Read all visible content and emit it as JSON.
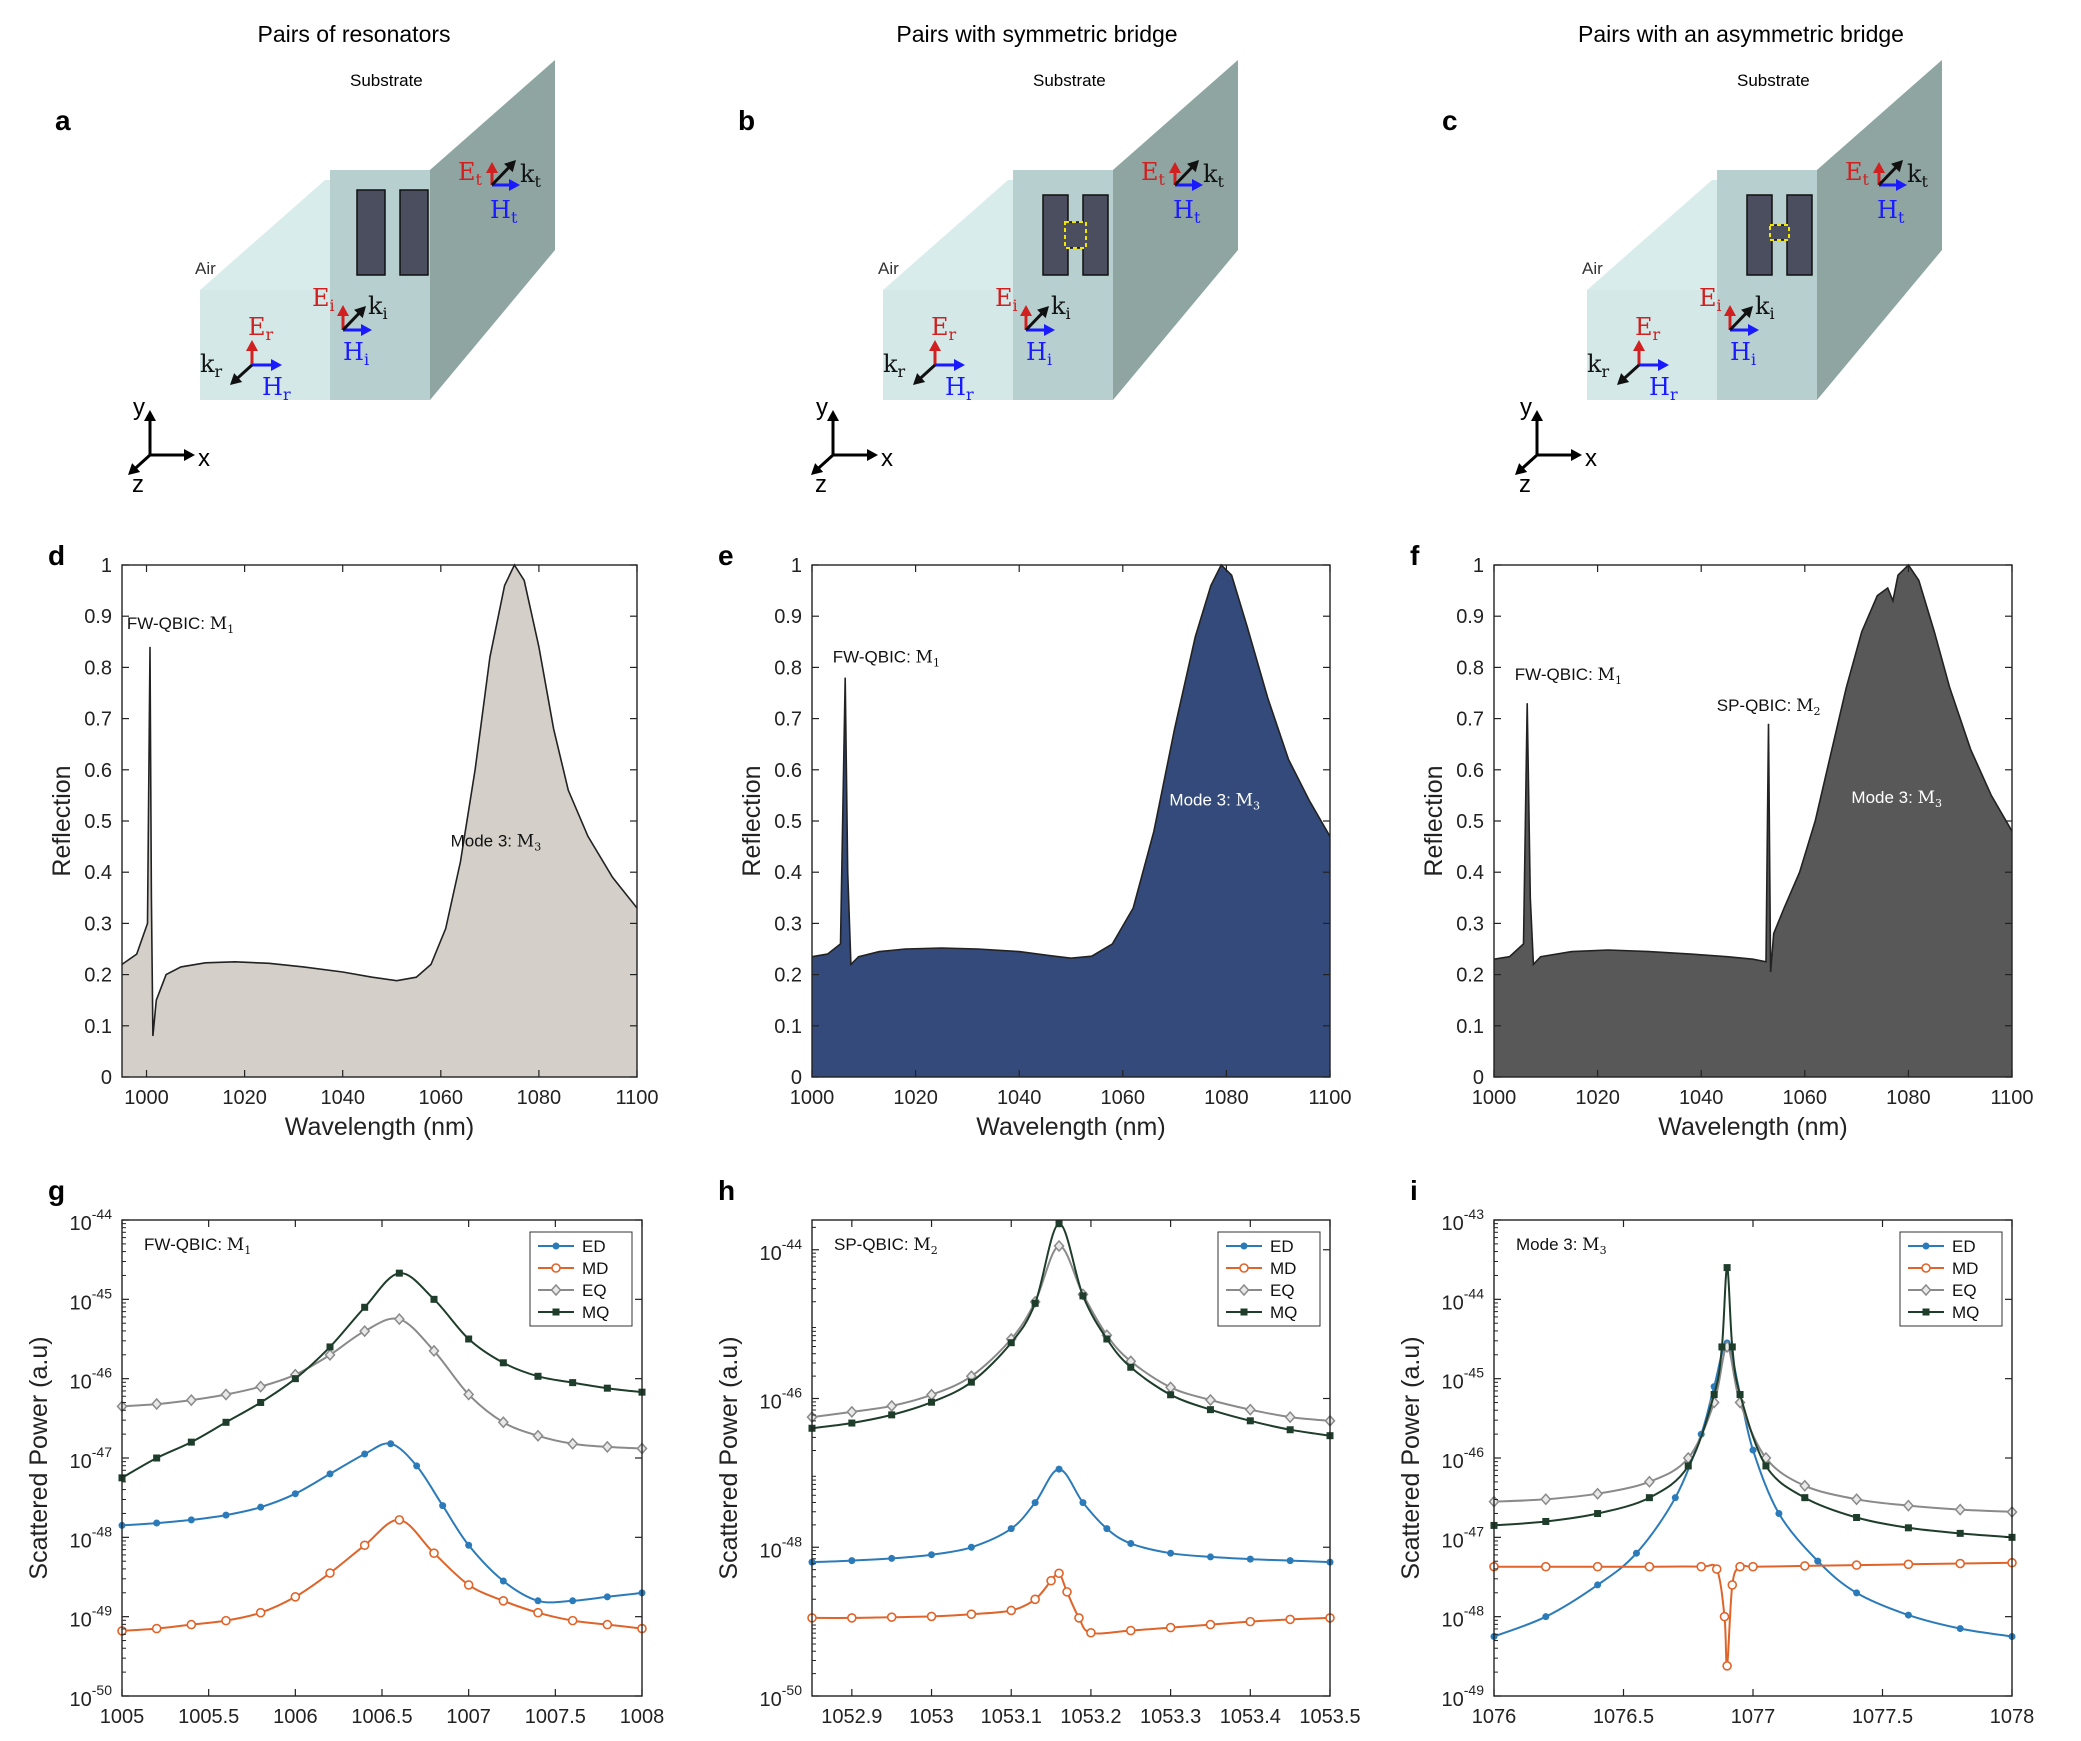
{
  "figure": {
    "panel_labels": [
      "a",
      "b",
      "c",
      "d",
      "e",
      "f",
      "g",
      "h",
      "i"
    ],
    "schematics": [
      {
        "title": "Pairs of resonators",
        "bridge": "none"
      },
      {
        "title": "Pairs with symmetric bridge",
        "bridge": "symmetric"
      },
      {
        "title": "Pairs with an asymmetric bridge",
        "bridge": "asymmetric"
      }
    ],
    "schematic_labels": {
      "substrate": "Substrate",
      "air": "Air",
      "E_t": "E",
      "E_t_sub": "t",
      "k_t": "k",
      "k_t_sub": "t",
      "H_t": "H",
      "H_t_sub": "t",
      "E_i": "E",
      "E_i_sub": "i",
      "k_i": "k",
      "k_i_sub": "i",
      "H_i": "H",
      "H_i_sub": "i",
      "E_r": "E",
      "E_r_sub": "r",
      "k_r": "k",
      "k_r_sub": "r",
      "H_r": "H",
      "H_r_sub": "r",
      "axis_x": "x",
      "axis_y": "y",
      "axis_z": "z"
    },
    "colors": {
      "E": "#d02020",
      "H": "#1a1aff",
      "k": "#111111",
      "block": "#4a4e5e",
      "bridge_box": "#f2e600",
      "air": "#cfe6e6",
      "substrate_front": "#b7cfcf",
      "substrate_top": "#a9c5c5",
      "substrate_side": "#8ea5a2",
      "ED": "#2b7bba",
      "MD": "#e0642a",
      "EQ": "#8a8a8a",
      "MQ": "#1f3d2b",
      "fill_d": "#d4d0c9",
      "fill_e": "#334a7b",
      "fill_f": "#585858"
    }
  },
  "chart_data": [
    {
      "id": "d",
      "type": "area",
      "xlabel": "Wavelength (nm)",
      "ylabel": "Reflection",
      "xlim": [
        995,
        1100
      ],
      "ylim": [
        0,
        1
      ],
      "xticks": [
        "1000",
        "1020",
        "1040",
        "1060",
        "1080",
        "1100"
      ],
      "yticks": [
        "0",
        "0.1",
        "0.2",
        "0.3",
        "0.4",
        "0.5",
        "0.6",
        "0.7",
        "0.8",
        "0.9",
        "1"
      ],
      "annotations": [
        {
          "text": "FW-QBIC:",
          "math": "M",
          "sub": "1",
          "x": 996,
          "y": 0.875,
          "color": "#111111"
        },
        {
          "text": "Mode 3:",
          "math": "M",
          "sub": "3",
          "x": 1062,
          "y": 0.45,
          "color": "#111111"
        }
      ],
      "x": [
        995,
        998,
        1000.2,
        1000.7,
        1001,
        1001.3,
        1002,
        1004,
        1007,
        1012,
        1018,
        1025,
        1032,
        1040,
        1046,
        1051,
        1055,
        1058,
        1061,
        1064,
        1067,
        1070,
        1073,
        1075,
        1077,
        1080,
        1083,
        1086,
        1090,
        1095,
        1100
      ],
      "y": [
        0.22,
        0.24,
        0.3,
        0.84,
        0.35,
        0.08,
        0.15,
        0.2,
        0.215,
        0.223,
        0.225,
        0.222,
        0.215,
        0.205,
        0.195,
        0.188,
        0.195,
        0.22,
        0.29,
        0.42,
        0.6,
        0.82,
        0.96,
        1.0,
        0.97,
        0.84,
        0.68,
        0.56,
        0.47,
        0.39,
        0.33
      ]
    },
    {
      "id": "e",
      "type": "area",
      "xlabel": "Wavelength (nm)",
      "ylabel": "Reflection",
      "xlim": [
        1000,
        1100
      ],
      "ylim": [
        0,
        1
      ],
      "xticks": [
        "1000",
        "1020",
        "1040",
        "1060",
        "1080",
        "1100"
      ],
      "yticks": [
        "0",
        "0.1",
        "0.2",
        "0.3",
        "0.4",
        "0.5",
        "0.6",
        "0.7",
        "0.8",
        "0.9",
        "1"
      ],
      "annotations": [
        {
          "text": "FW-QBIC:",
          "math": "M",
          "sub": "1",
          "x": 1004,
          "y": 0.81,
          "color": "#111111"
        },
        {
          "text": "Mode 3:",
          "math": "M",
          "sub": "3",
          "x": 1069,
          "y": 0.53,
          "color": "#ffffff"
        }
      ],
      "x": [
        1000,
        1003,
        1005.5,
        1006.4,
        1006.9,
        1007.5,
        1009,
        1013,
        1018,
        1025,
        1032,
        1040,
        1046,
        1050,
        1054,
        1058,
        1062,
        1066,
        1070,
        1074,
        1077,
        1079,
        1081,
        1084,
        1088,
        1092,
        1096,
        1100
      ],
      "y": [
        0.235,
        0.24,
        0.26,
        0.78,
        0.4,
        0.22,
        0.235,
        0.245,
        0.25,
        0.252,
        0.25,
        0.245,
        0.237,
        0.232,
        0.236,
        0.26,
        0.33,
        0.48,
        0.68,
        0.86,
        0.96,
        1.0,
        0.98,
        0.88,
        0.74,
        0.62,
        0.54,
        0.47
      ]
    },
    {
      "id": "f",
      "type": "area",
      "xlabel": "Wavelength (nm)",
      "ylabel": "Reflection",
      "xlim": [
        1000,
        1100
      ],
      "ylim": [
        0,
        1
      ],
      "xticks": [
        "1000",
        "1020",
        "1040",
        "1060",
        "1080",
        "1100"
      ],
      "yticks": [
        "0",
        "0.1",
        "0.2",
        "0.3",
        "0.4",
        "0.5",
        "0.6",
        "0.7",
        "0.8",
        "0.9",
        "1"
      ],
      "annotations": [
        {
          "text": "FW-QBIC:",
          "math": "M",
          "sub": "1",
          "x": 1004,
          "y": 0.775,
          "color": "#111111"
        },
        {
          "text": "SP-QBIC:",
          "math": "M",
          "sub": "2",
          "x": 1043,
          "y": 0.715,
          "color": "#111111"
        },
        {
          "text": "Mode 3:",
          "math": "M",
          "sub": "3",
          "x": 1069,
          "y": 0.535,
          "color": "#ffffff"
        }
      ],
      "x": [
        1000,
        1003,
        1005.7,
        1006.4,
        1007,
        1007.6,
        1009,
        1015,
        1022,
        1030,
        1038,
        1045,
        1050,
        1052.5,
        1053,
        1053.4,
        1054,
        1056,
        1059,
        1062,
        1065,
        1068,
        1071,
        1074,
        1076,
        1077,
        1078,
        1080,
        1082,
        1085,
        1088,
        1092,
        1096,
        1100
      ],
      "y": [
        0.23,
        0.235,
        0.26,
        0.73,
        0.35,
        0.22,
        0.235,
        0.245,
        0.248,
        0.245,
        0.24,
        0.235,
        0.23,
        0.225,
        0.69,
        0.205,
        0.28,
        0.33,
        0.4,
        0.5,
        0.63,
        0.76,
        0.87,
        0.94,
        0.955,
        0.93,
        0.98,
        1.0,
        0.97,
        0.87,
        0.76,
        0.64,
        0.55,
        0.48
      ]
    },
    {
      "id": "g",
      "type": "line",
      "xlabel": "Wavelength (nm)",
      "ylabel": "Scattered Power (a.u)",
      "xlim": [
        1005,
        1008
      ],
      "ylim_log10": [
        -50,
        -44
      ],
      "xticks": [
        "1005",
        "1005.5",
        "1006",
        "1006.5",
        "1007",
        "1007.5",
        "1008"
      ],
      "yticks_exp": [
        "-50",
        "-49",
        "-48",
        "-47",
        "-46",
        "-45",
        "-44"
      ],
      "title_annotation": {
        "text": "FW-QBIC:",
        "math": "M",
        "sub": "1"
      },
      "legend": {
        "position": "top-right",
        "entries": [
          "ED",
          "MD",
          "EQ",
          "MQ"
        ]
      },
      "series": [
        {
          "name": "ED",
          "marker": "dot",
          "x": [
            1005,
            1005.2,
            1005.4,
            1005.6,
            1005.8,
            1006,
            1006.2,
            1006.4,
            1006.55,
            1006.7,
            1006.85,
            1007,
            1007.2,
            1007.4,
            1007.6,
            1007.8,
            1008
          ],
          "y": [
            -47.85,
            -47.82,
            -47.78,
            -47.72,
            -47.62,
            -47.45,
            -47.2,
            -46.95,
            -46.82,
            -47.1,
            -47.6,
            -48.1,
            -48.55,
            -48.8,
            -48.8,
            -48.75,
            -48.7
          ]
        },
        {
          "name": "MD",
          "marker": "circle",
          "x": [
            1005,
            1005.2,
            1005.4,
            1005.6,
            1005.8,
            1006,
            1006.2,
            1006.4,
            1006.6,
            1006.8,
            1007,
            1007.2,
            1007.4,
            1007.6,
            1007.8,
            1008
          ],
          "y": [
            -49.18,
            -49.15,
            -49.1,
            -49.05,
            -48.95,
            -48.75,
            -48.45,
            -48.1,
            -47.78,
            -48.2,
            -48.6,
            -48.8,
            -48.95,
            -49.05,
            -49.1,
            -49.15
          ]
        },
        {
          "name": "EQ",
          "marker": "diamond",
          "x": [
            1005,
            1005.2,
            1005.4,
            1005.6,
            1005.8,
            1006,
            1006.2,
            1006.4,
            1006.6,
            1006.8,
            1007,
            1007.2,
            1007.4,
            1007.6,
            1007.8,
            1008
          ],
          "y": [
            -46.35,
            -46.32,
            -46.27,
            -46.2,
            -46.1,
            -45.95,
            -45.7,
            -45.4,
            -45.25,
            -45.65,
            -46.2,
            -46.55,
            -46.72,
            -46.82,
            -46.86,
            -46.88
          ]
        },
        {
          "name": "MQ",
          "marker": "square",
          "x": [
            1005,
            1005.2,
            1005.4,
            1005.6,
            1005.8,
            1006,
            1006.2,
            1006.4,
            1006.6,
            1006.8,
            1007,
            1007.2,
            1007.4,
            1007.6,
            1007.8,
            1008
          ],
          "y": [
            -47.25,
            -47.0,
            -46.8,
            -46.55,
            -46.3,
            -46.0,
            -45.6,
            -45.1,
            -44.67,
            -45.0,
            -45.5,
            -45.8,
            -45.97,
            -46.05,
            -46.12,
            -46.17
          ]
        }
      ]
    },
    {
      "id": "h",
      "type": "line",
      "xlabel": "Wavelength (nm)",
      "ylabel": "Scattered Power (a.u)",
      "xlim": [
        1052.85,
        1053.5
      ],
      "ylim_log10": [
        -50,
        -43.6
      ],
      "xticks": [
        "1052.9",
        "1053",
        "1053.1",
        "1053.2",
        "1053.3",
        "1053.4",
        "1053.5"
      ],
      "yticks_exp": [
        "-50",
        "-48",
        "-46",
        "-44"
      ],
      "title_annotation": {
        "text": "SP-QBIC:",
        "math": "M",
        "sub": "2"
      },
      "legend": {
        "position": "top-right",
        "entries": [
          "ED",
          "MD",
          "EQ",
          "MQ"
        ]
      },
      "series": [
        {
          "name": "ED",
          "marker": "dot",
          "x": [
            1052.85,
            1052.9,
            1052.95,
            1053,
            1053.05,
            1053.1,
            1053.13,
            1053.16,
            1053.19,
            1053.22,
            1053.25,
            1053.3,
            1053.35,
            1053.4,
            1053.45,
            1053.5
          ],
          "y": [
            -48.2,
            -48.18,
            -48.15,
            -48.1,
            -48.0,
            -47.75,
            -47.4,
            -46.95,
            -47.4,
            -47.75,
            -47.95,
            -48.08,
            -48.13,
            -48.16,
            -48.18,
            -48.2
          ]
        },
        {
          "name": "MD",
          "marker": "circle",
          "x": [
            1052.85,
            1052.9,
            1052.95,
            1053,
            1053.05,
            1053.1,
            1053.13,
            1053.15,
            1053.16,
            1053.17,
            1053.185,
            1053.2,
            1053.25,
            1053.3,
            1053.35,
            1053.4,
            1053.45,
            1053.5
          ],
          "y": [
            -48.95,
            -48.95,
            -48.94,
            -48.93,
            -48.9,
            -48.85,
            -48.7,
            -48.45,
            -48.35,
            -48.6,
            -48.95,
            -49.15,
            -49.12,
            -49.08,
            -49.04,
            -49.0,
            -48.97,
            -48.95
          ]
        },
        {
          "name": "EQ",
          "marker": "diamond",
          "x": [
            1052.85,
            1052.9,
            1052.95,
            1053,
            1053.05,
            1053.1,
            1053.13,
            1053.16,
            1053.19,
            1053.22,
            1053.25,
            1053.3,
            1053.35,
            1053.4,
            1053.45,
            1053.5
          ],
          "y": [
            -46.25,
            -46.18,
            -46.1,
            -45.95,
            -45.7,
            -45.2,
            -44.7,
            -43.95,
            -44.6,
            -45.15,
            -45.5,
            -45.85,
            -46.02,
            -46.15,
            -46.25,
            -46.3
          ]
        },
        {
          "name": "MQ",
          "marker": "square",
          "x": [
            1052.85,
            1052.9,
            1052.95,
            1053,
            1053.05,
            1053.1,
            1053.13,
            1053.16,
            1053.19,
            1053.22,
            1053.25,
            1053.3,
            1053.35,
            1053.4,
            1053.45,
            1053.5
          ],
          "y": [
            -46.4,
            -46.33,
            -46.22,
            -46.05,
            -45.78,
            -45.25,
            -44.72,
            -43.65,
            -44.62,
            -45.2,
            -45.58,
            -45.95,
            -46.15,
            -46.3,
            -46.42,
            -46.5
          ]
        }
      ]
    },
    {
      "id": "i",
      "type": "line",
      "xlabel": "Wavelength (nm)",
      "ylabel": "Scattered Power (a.u)",
      "xlim": [
        1076,
        1078
      ],
      "ylim_log10": [
        -49,
        -43
      ],
      "xticks": [
        "1076",
        "1076.5",
        "1077",
        "1077.5",
        "1078"
      ],
      "yticks_exp": [
        "-49",
        "-48",
        "-47",
        "-46",
        "-45",
        "-44",
        "-43"
      ],
      "title_annotation": {
        "text": "Mode 3:",
        "math": "M",
        "sub": "3"
      },
      "legend": {
        "position": "top-right",
        "entries": [
          "ED",
          "MD",
          "EQ",
          "MQ"
        ]
      },
      "series": [
        {
          "name": "ED",
          "marker": "dot",
          "x": [
            1076,
            1076.2,
            1076.4,
            1076.55,
            1076.7,
            1076.8,
            1076.85,
            1076.9,
            1076.95,
            1077,
            1077.1,
            1077.25,
            1077.4,
            1077.6,
            1077.8,
            1078
          ],
          "y": [
            -48.25,
            -48.0,
            -47.6,
            -47.2,
            -46.5,
            -45.7,
            -45.1,
            -44.55,
            -45.2,
            -45.9,
            -46.7,
            -47.3,
            -47.7,
            -47.98,
            -48.15,
            -48.25
          ]
        },
        {
          "name": "MD",
          "marker": "circle",
          "x": [
            1076,
            1076.2,
            1076.4,
            1076.6,
            1076.8,
            1076.86,
            1076.89,
            1076.9,
            1076.92,
            1076.95,
            1077,
            1077.2,
            1077.4,
            1077.6,
            1077.8,
            1078
          ],
          "y": [
            -47.37,
            -47.37,
            -47.37,
            -47.37,
            -47.37,
            -47.4,
            -48.0,
            -48.62,
            -47.6,
            -47.37,
            -47.37,
            -47.36,
            -47.35,
            -47.34,
            -47.33,
            -47.32
          ]
        },
        {
          "name": "EQ",
          "marker": "diamond",
          "x": [
            1076,
            1076.2,
            1076.4,
            1076.6,
            1076.75,
            1076.85,
            1076.9,
            1076.95,
            1077.05,
            1077.2,
            1077.4,
            1077.6,
            1077.8,
            1078
          ],
          "y": [
            -46.55,
            -46.52,
            -46.45,
            -46.3,
            -46.0,
            -45.3,
            -44.6,
            -45.3,
            -46.0,
            -46.35,
            -46.52,
            -46.6,
            -46.65,
            -46.68
          ]
        },
        {
          "name": "MQ",
          "marker": "square",
          "x": [
            1076,
            1076.2,
            1076.4,
            1076.6,
            1076.75,
            1076.85,
            1076.88,
            1076.9,
            1076.92,
            1076.95,
            1077.05,
            1077.2,
            1077.4,
            1077.6,
            1077.8,
            1078
          ],
          "y": [
            -46.85,
            -46.8,
            -46.7,
            -46.5,
            -46.1,
            -45.2,
            -44.6,
            -43.6,
            -44.6,
            -45.2,
            -46.1,
            -46.5,
            -46.75,
            -46.88,
            -46.95,
            -47.0
          ]
        }
      ]
    }
  ]
}
